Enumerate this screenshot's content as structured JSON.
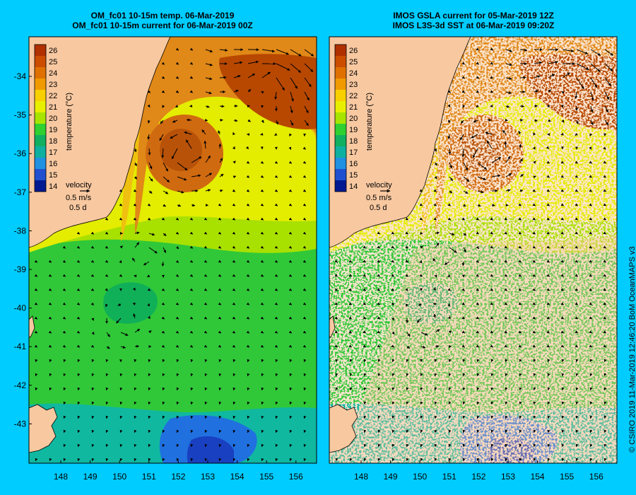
{
  "left_panel": {
    "title_line1": "OM_fc01 10-15m temp. 06-Mar-2019",
    "title_line2": "OM_fc01 10-15m current for 06-Mar-2019 00Z"
  },
  "right_panel": {
    "title_line1": "IMOS GSLA current for 05-Mar-2019 12Z",
    "title_line2": "IMOS L3S-3d SST at 06-Mar-2019 09:20Z"
  },
  "colorbar": {
    "label": "temperature (°C)",
    "ticks": [
      "26",
      "25",
      "24",
      "23",
      "22",
      "21",
      "20",
      "19",
      "18",
      "17",
      "16",
      "15",
      "14"
    ],
    "colors": [
      "#b03000",
      "#cc4c00",
      "#e07000",
      "#f09a00",
      "#f8d000",
      "#e8ee00",
      "#a8e400",
      "#30d030",
      "#10b060",
      "#10b0a0",
      "#2090e0",
      "#2050d0",
      "#001890"
    ]
  },
  "velocity_legend": {
    "label": "velocity",
    "speed": "0.5 m/s",
    "duration": "0.5 d"
  },
  "axes": {
    "lon_ticks": [
      "148",
      "149",
      "150",
      "151",
      "152",
      "153",
      "154",
      "155",
      "156"
    ],
    "lat_ticks": [
      "-34",
      "-35",
      "-36",
      "-37",
      "-38",
      "-39",
      "-40",
      "-41",
      "-42",
      "-43"
    ]
  },
  "credit": "© CSIRO 2019   11-Mar-2019 12:46:20 BoM OceanMAPS v3",
  "colors": {
    "background": "#00ccff",
    "land": "#f8c8a0",
    "warm_core": "#b84800",
    "warm": "#e08010",
    "mid": "#f0dc20",
    "cool": "#30c030",
    "cold": "#1090d0"
  }
}
